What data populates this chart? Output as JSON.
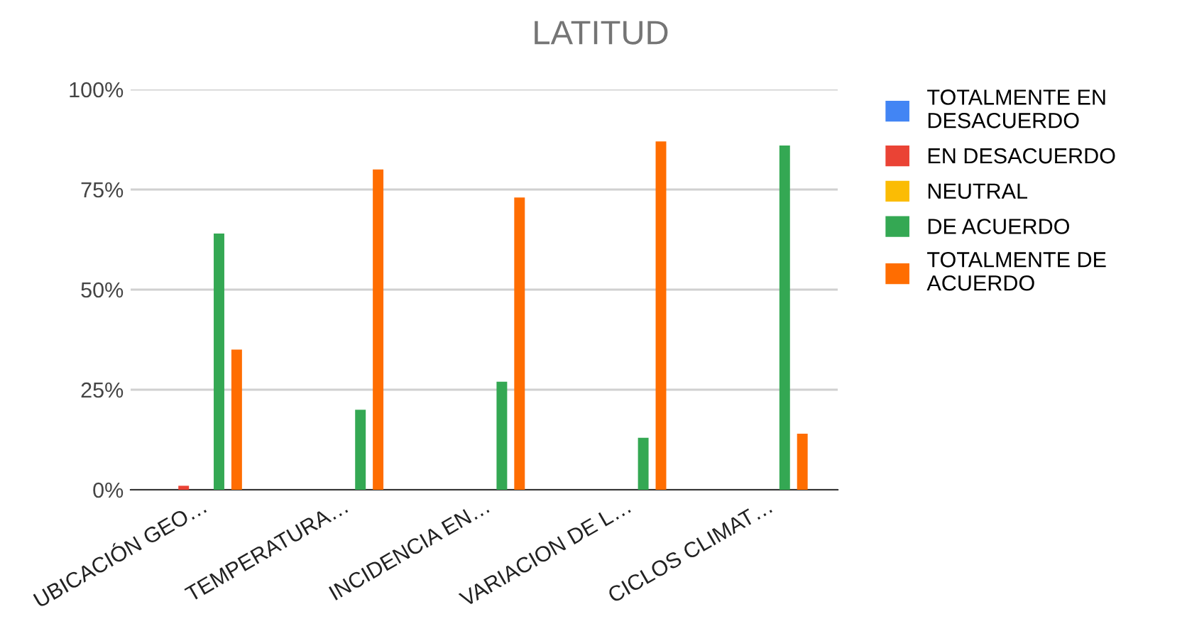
{
  "chart_data": {
    "type": "bar",
    "title": "LATITUD",
    "categories": [
      "UBICACIÓN GEO…",
      "TEMPERATURA…",
      "INCIDENCIA EN…",
      "VARIACION DE L…",
      "CICLOS CLIMAT…"
    ],
    "series": [
      {
        "name": "TOTALMENTE EN DESACUERDO",
        "color": "#4285f4",
        "values": [
          0,
          0,
          0,
          0,
          0
        ]
      },
      {
        "name": "EN DESACUERDO",
        "color": "#ea4335",
        "values": [
          1,
          0,
          0,
          0,
          0
        ]
      },
      {
        "name": "NEUTRAL",
        "color": "#fbbc04",
        "values": [
          0,
          0,
          0,
          0,
          0
        ]
      },
      {
        "name": "DE ACUERDO",
        "color": "#34a853",
        "values": [
          64,
          20,
          27,
          13,
          86
        ]
      },
      {
        "name": "TOTALMENTE DE ACUERDO",
        "color": "#ff6d01",
        "values": [
          35,
          80,
          73,
          87,
          14
        ]
      }
    ],
    "ylim": [
      0,
      100
    ],
    "yticks": [
      {
        "value": 0,
        "label": "0%"
      },
      {
        "value": 25,
        "label": "25%"
      },
      {
        "value": 50,
        "label": "50%"
      },
      {
        "value": 75,
        "label": "75%"
      },
      {
        "value": 100,
        "label": "100%"
      }
    ],
    "grid": "y",
    "legend": "right"
  }
}
